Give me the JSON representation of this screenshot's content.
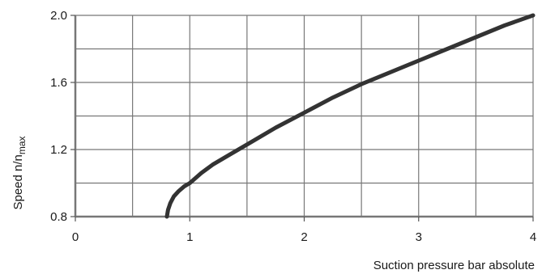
{
  "chart_data": {
    "type": "line",
    "title": "",
    "xlabel": "Suction pressure bar absolute",
    "ylabel_main": "Speed n/n",
    "ylabel_sub": "max",
    "xlim": [
      0,
      4
    ],
    "ylim": [
      0.8,
      2.0
    ],
    "x_ticks": [
      0,
      1,
      2,
      3,
      4
    ],
    "x_tick_labels": [
      "0",
      "1",
      "2",
      "3",
      "4"
    ],
    "y_ticks": [
      0.8,
      1.2,
      1.6,
      2.0
    ],
    "y_tick_labels": [
      "0.8",
      "1.2",
      "1.6",
      "2.0"
    ],
    "x_grid_count": 8,
    "y_grid_count": 6,
    "grid": true,
    "legend": "none",
    "series": [
      {
        "color": "#333333",
        "x": [
          0.8,
          0.81,
          0.83,
          0.86,
          0.9,
          0.95,
          1.0,
          1.1,
          1.2,
          1.35,
          1.5,
          1.75,
          2.0,
          2.25,
          2.5,
          2.75,
          3.0,
          3.25,
          3.5,
          3.75,
          4.0
        ],
        "y": [
          0.8,
          0.84,
          0.88,
          0.92,
          0.95,
          0.98,
          1.0,
          1.06,
          1.11,
          1.17,
          1.23,
          1.33,
          1.42,
          1.51,
          1.59,
          1.66,
          1.73,
          1.8,
          1.87,
          1.94,
          2.0
        ]
      }
    ]
  }
}
